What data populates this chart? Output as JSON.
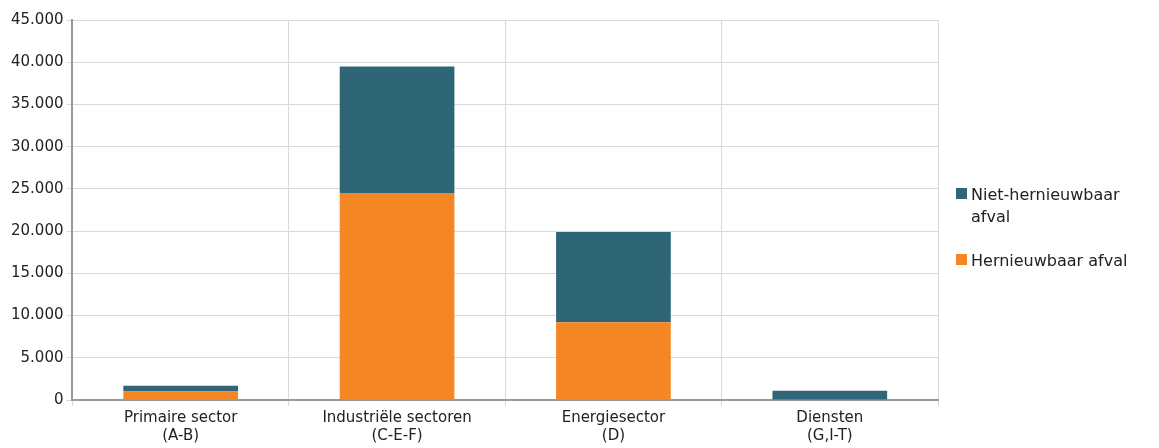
{
  "chart_data": {
    "type": "bar",
    "stacked": true,
    "categories": [
      "Primaire sector (A-B)",
      "Industriële sectoren (C-E-F)",
      "Energiesector (D)",
      "Diensten (G,I-T)"
    ],
    "series": [
      {
        "name": "Hernieuwbaar afval",
        "color": "#f58624",
        "values": [
          1000,
          24500,
          9200,
          0
        ]
      },
      {
        "name": "Niet-hernieuwbaar afval",
        "color": "#2e6678",
        "values": [
          700,
          15000,
          10700,
          1100
        ]
      }
    ],
    "ylim": [
      0,
      45000
    ],
    "yticks": [
      {
        "value": 0,
        "label": "0"
      },
      {
        "value": 5000,
        "label": "5.000"
      },
      {
        "value": 10000,
        "label": "10.000"
      },
      {
        "value": 15000,
        "label": "15.000"
      },
      {
        "value": 20000,
        "label": "20.000"
      },
      {
        "value": 25000,
        "label": "25.000"
      },
      {
        "value": 30000,
        "label": "30.000"
      },
      {
        "value": 35000,
        "label": "35.000"
      },
      {
        "value": 40000,
        "label": "40.000"
      },
      {
        "value": 45000,
        "label": "45.000"
      }
    ],
    "grid": true,
    "legend": "right"
  }
}
